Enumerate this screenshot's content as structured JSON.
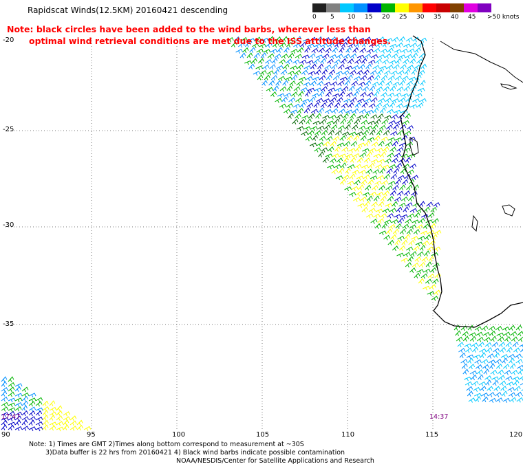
{
  "header": {
    "title": "Rapidscat Winds(12.5KM) 20160421 descending",
    "note_line1": "Note: black circles have been added to the wind barbs, wherever less than",
    "note_line2": "optimal wind retrieval conditions are met due to the ISS attitude changes."
  },
  "legend": {
    "labels": [
      "0",
      "5",
      "10",
      "15",
      "20",
      "25",
      "30",
      "35",
      "40",
      "45",
      ">50 knots"
    ],
    "colors": [
      "#202020",
      "#808080",
      "#00c8ff",
      "#0090ff",
      "#0000c8",
      "#00b400",
      "#ffff00",
      "#ff9600",
      "#ff0000",
      "#c80000",
      "#804000",
      "#e000e0",
      "#8000c0"
    ]
  },
  "axes": {
    "x_ticks": [
      "90",
      "95",
      "100",
      "105",
      "110",
      "115",
      "120"
    ],
    "y_ticks": [
      "-20",
      "-25",
      "-30",
      "-35"
    ]
  },
  "times": {
    "left": "17:47",
    "right": "14:37"
  },
  "footer": {
    "line1": "Note: 1) Times are GMT 2)Times along bottom correspond to measurement at ~30S",
    "line2": "3)Data buffer is 22 hrs from 20160421 4) Black wind barbs indicate possible contamination",
    "line3": "NOAA/NESDIS/Center for Satellite Applications and Research"
  }
}
